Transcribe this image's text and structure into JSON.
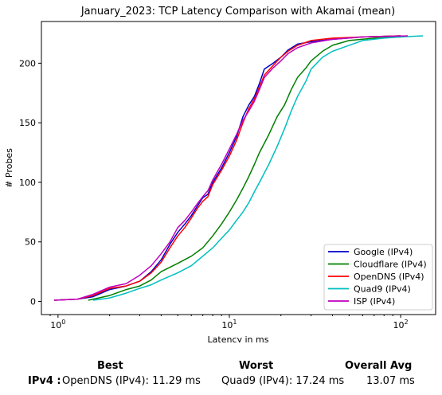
{
  "chart_data": {
    "type": "line",
    "title": "January_2023: TCP Latency Comparison with Akamai (mean)",
    "xlabel": "Latency in ms",
    "ylabel": "# Probes",
    "xscale": "log",
    "xlim": [
      0.8,
      160
    ],
    "ylim": [
      -11,
      235
    ],
    "x_ticks": [
      {
        "value": 1,
        "label": "10^0"
      },
      {
        "value": 10,
        "label": "10^1"
      },
      {
        "value": 100,
        "label": "10^2"
      }
    ],
    "y_ticks": [
      0,
      50,
      100,
      150,
      200
    ],
    "legend_position": "lower right",
    "grid": false,
    "series": [
      {
        "name": "Google (IPv4)",
        "color": "#0000cc",
        "points": [
          [
            0.95,
            1
          ],
          [
            1.3,
            2
          ],
          [
            1.6,
            4
          ],
          [
            2.0,
            10
          ],
          [
            2.5,
            13
          ],
          [
            3.0,
            17
          ],
          [
            3.5,
            25
          ],
          [
            4.0,
            35
          ],
          [
            4.5,
            48
          ],
          [
            5.0,
            58
          ],
          [
            5.5,
            65
          ],
          [
            6.0,
            72
          ],
          [
            6.5,
            80
          ],
          [
            7.0,
            87
          ],
          [
            7.5,
            90
          ],
          [
            8.0,
            100
          ],
          [
            9.0,
            112
          ],
          [
            10.0,
            125
          ],
          [
            11.0,
            138
          ],
          [
            12.0,
            155
          ],
          [
            13.0,
            165
          ],
          [
            14.0,
            172
          ],
          [
            15.0,
            183
          ],
          [
            16.0,
            195
          ],
          [
            18.0,
            200
          ],
          [
            20.0,
            205
          ],
          [
            22.0,
            211
          ],
          [
            25.0,
            216
          ],
          [
            30.0,
            218
          ],
          [
            40.0,
            220
          ],
          [
            60.0,
            222
          ],
          [
            100.0,
            223
          ]
        ]
      },
      {
        "name": "Cloudflare (IPv4)",
        "color": "#008000",
        "points": [
          [
            1.5,
            1
          ],
          [
            2.0,
            5
          ],
          [
            2.5,
            10
          ],
          [
            3.0,
            13
          ],
          [
            3.5,
            18
          ],
          [
            4.0,
            25
          ],
          [
            5.0,
            32
          ],
          [
            6.0,
            38
          ],
          [
            7.0,
            45
          ],
          [
            8.0,
            55
          ],
          [
            9.0,
            65
          ],
          [
            10.0,
            75
          ],
          [
            11.0,
            85
          ],
          [
            12.0,
            95
          ],
          [
            13.0,
            105
          ],
          [
            14.0,
            115
          ],
          [
            15.0,
            125
          ],
          [
            17.0,
            140
          ],
          [
            19.0,
            155
          ],
          [
            21.0,
            165
          ],
          [
            23.0,
            178
          ],
          [
            25.0,
            188
          ],
          [
            28.0,
            196
          ],
          [
            30.0,
            202
          ],
          [
            35.0,
            210
          ],
          [
            40.0,
            215
          ],
          [
            50.0,
            219
          ],
          [
            70.0,
            221
          ],
          [
            100.0,
            222
          ]
        ]
      },
      {
        "name": "OpenDNS (IPv4)",
        "color": "#ff0000",
        "points": [
          [
            0.95,
            1
          ],
          [
            1.3,
            2
          ],
          [
            1.6,
            5
          ],
          [
            2.0,
            11
          ],
          [
            2.5,
            13
          ],
          [
            3.0,
            17
          ],
          [
            3.5,
            24
          ],
          [
            4.0,
            33
          ],
          [
            4.5,
            45
          ],
          [
            5.0,
            55
          ],
          [
            5.5,
            62
          ],
          [
            6.0,
            70
          ],
          [
            6.5,
            78
          ],
          [
            7.0,
            84
          ],
          [
            7.5,
            88
          ],
          [
            8.0,
            98
          ],
          [
            9.0,
            110
          ],
          [
            10.0,
            122
          ],
          [
            11.0,
            135
          ],
          [
            12.0,
            150
          ],
          [
            13.0,
            162
          ],
          [
            14.0,
            170
          ],
          [
            15.0,
            180
          ],
          [
            16.0,
            190
          ],
          [
            18.0,
            198
          ],
          [
            20.0,
            205
          ],
          [
            22.0,
            210
          ],
          [
            25.0,
            215
          ],
          [
            30.0,
            219
          ],
          [
            40.0,
            221
          ],
          [
            60.0,
            222
          ],
          [
            100.0,
            223
          ]
        ]
      },
      {
        "name": "Quad9 (IPv4)",
        "color": "#00bfbf",
        "points": [
          [
            1.6,
            1
          ],
          [
            2.0,
            3
          ],
          [
            2.5,
            7
          ],
          [
            3.0,
            11
          ],
          [
            3.5,
            14
          ],
          [
            4.0,
            18
          ],
          [
            5.0,
            24
          ],
          [
            6.0,
            30
          ],
          [
            7.0,
            38
          ],
          [
            8.0,
            45
          ],
          [
            9.0,
            53
          ],
          [
            10.0,
            60
          ],
          [
            11.0,
            68
          ],
          [
            12.0,
            75
          ],
          [
            13.0,
            83
          ],
          [
            14.0,
            92
          ],
          [
            15.0,
            100
          ],
          [
            17.0,
            115
          ],
          [
            19.0,
            130
          ],
          [
            21.0,
            145
          ],
          [
            23.0,
            160
          ],
          [
            25.0,
            172
          ],
          [
            28.0,
            185
          ],
          [
            30.0,
            195
          ],
          [
            35.0,
            205
          ],
          [
            40.0,
            210
          ],
          [
            50.0,
            215
          ],
          [
            60.0,
            219
          ],
          [
            80.0,
            221
          ],
          [
            100.0,
            222
          ],
          [
            135.0,
            223
          ]
        ]
      },
      {
        "name": "ISP (IPv4)",
        "color": "#bf00bf",
        "points": [
          [
            0.95,
            1
          ],
          [
            1.3,
            2
          ],
          [
            1.6,
            6
          ],
          [
            2.0,
            12
          ],
          [
            2.5,
            15
          ],
          [
            3.0,
            22
          ],
          [
            3.5,
            30
          ],
          [
            4.0,
            40
          ],
          [
            4.5,
            50
          ],
          [
            5.0,
            62
          ],
          [
            5.5,
            68
          ],
          [
            6.0,
            75
          ],
          [
            6.5,
            82
          ],
          [
            7.0,
            88
          ],
          [
            7.5,
            93
          ],
          [
            8.0,
            102
          ],
          [
            9.0,
            115
          ],
          [
            10.0,
            128
          ],
          [
            11.0,
            140
          ],
          [
            12.0,
            152
          ],
          [
            13.0,
            160
          ],
          [
            14.0,
            168
          ],
          [
            15.0,
            178
          ],
          [
            16.0,
            188
          ],
          [
            18.0,
            196
          ],
          [
            20.0,
            202
          ],
          [
            22.0,
            208
          ],
          [
            25.0,
            213
          ],
          [
            30.0,
            217
          ],
          [
            40.0,
            220
          ],
          [
            60.0,
            222
          ],
          [
            110.0,
            223
          ]
        ]
      }
    ]
  },
  "summary": {
    "best_header": "Best",
    "worst_header": "Worst",
    "avg_header": "Overall Avg",
    "row_label": "IPv4 :",
    "best_value": "OpenDNS (IPv4): 11.29 ms",
    "worst_value": "Quad9 (IPv4): 17.24 ms",
    "avg_value": "13.07 ms"
  }
}
